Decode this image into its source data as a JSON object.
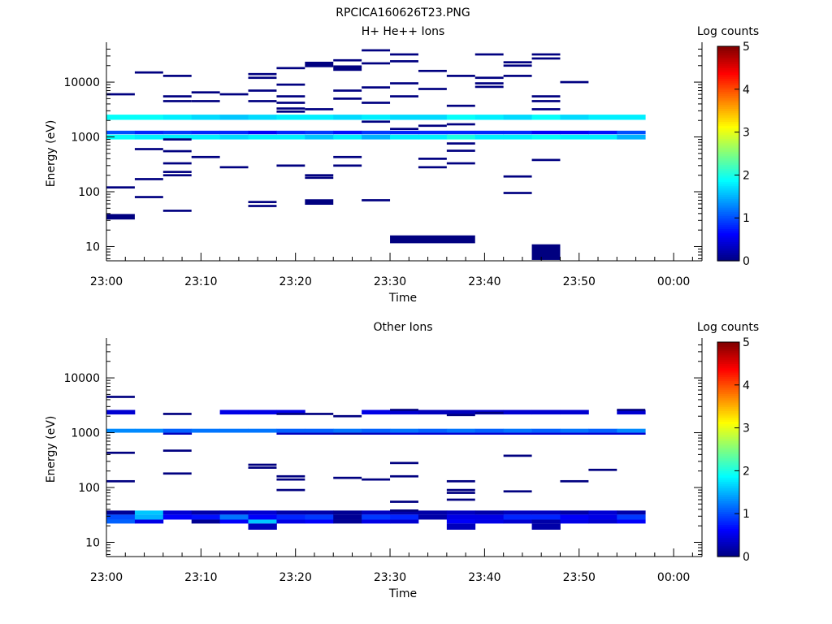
{
  "figure_title": "RPCICA160626T23.PNG",
  "colorbar": {
    "label": "Log counts",
    "ticks": [
      0,
      1,
      2,
      3,
      4,
      5
    ],
    "range": [
      0,
      5
    ],
    "colormap": "jet"
  },
  "chart_data": [
    {
      "type": "heatmap",
      "title": "H+ He++ Ions",
      "xlabel": "Time",
      "ylabel": "Energy (eV)",
      "x_ticks": [
        "23:00",
        "23:10",
        "23:20",
        "23:30",
        "23:40",
        "23:50",
        "00:00"
      ],
      "x_range_minutes": [
        0,
        63
      ],
      "y_scale": "log",
      "y_range": [
        5.5,
        45000
      ],
      "y_ticks": [
        10,
        100,
        1000,
        10000
      ],
      "time_bins": [
        "23:00",
        "23:03",
        "23:06",
        "23:09",
        "23:12",
        "23:15",
        "23:18",
        "23:21",
        "23:24",
        "23:27",
        "23:30",
        "23:33",
        "23:36",
        "23:39",
        "23:42",
        "23:45",
        "23:48",
        "23:51",
        "23:54"
      ],
      "bands": [
        {
          "e1": 2050,
          "e2": 2550,
          "values": [
            1.9,
            1.9,
            1.8,
            1.7,
            1.6,
            1.7,
            1.8,
            1.8,
            1.7,
            1.8,
            1.7,
            1.7,
            1.9,
            1.8,
            1.7,
            1.9,
            1.7,
            1.8,
            1.8
          ]
        },
        {
          "e1": 900,
          "e2": 1100,
          "values": [
            1.9,
            1.8,
            1.8,
            1.8,
            1.7,
            1.8,
            1.8,
            1.6,
            1.8,
            1.5,
            1.8,
            1.8,
            2.0,
            1.8,
            1.8,
            1.9,
            1.8,
            1.8,
            1.5
          ]
        },
        {
          "e1": 1120,
          "e2": 1300,
          "values": [
            1.0,
            0.8,
            0.9,
            0.8,
            0.8,
            0.6,
            0.8,
            0.9,
            0.7,
            0.9,
            0.8,
            0.8,
            0.8,
            0.8,
            0.8,
            0.6,
            0.6,
            0.7,
            1.0
          ]
        }
      ],
      "cells": [
        {
          "t": 0,
          "e": 6000
        },
        {
          "t": 0,
          "e": 120
        },
        {
          "t": 0,
          "e": 35,
          "w": 0.1
        },
        {
          "t": 1,
          "e": 15000
        },
        {
          "t": 1,
          "e": 600
        },
        {
          "t": 1,
          "e": 170
        },
        {
          "t": 1,
          "e": 80
        },
        {
          "t": 2,
          "e": 13000
        },
        {
          "t": 2,
          "e": 5500
        },
        {
          "t": 2,
          "e": 4500
        },
        {
          "t": 2,
          "e": 900
        },
        {
          "t": 2,
          "e": 550
        },
        {
          "t": 2,
          "e": 330
        },
        {
          "t": 2,
          "e": 230
        },
        {
          "t": 2,
          "e": 200
        },
        {
          "t": 2,
          "e": 45
        },
        {
          "t": 3,
          "e": 6500
        },
        {
          "t": 3,
          "e": 4500
        },
        {
          "t": 3,
          "e": 430
        },
        {
          "t": 4,
          "e": 6000
        },
        {
          "t": 4,
          "e": 280
        },
        {
          "t": 5,
          "e": 14000
        },
        {
          "t": 5,
          "e": 12000
        },
        {
          "t": 5,
          "e": 7000
        },
        {
          "t": 5,
          "e": 4500
        },
        {
          "t": 5,
          "e": 65
        },
        {
          "t": 5,
          "e": 55
        },
        {
          "t": 6,
          "e": 18000
        },
        {
          "t": 6,
          "e": 9000
        },
        {
          "t": 6,
          "e": 5500
        },
        {
          "t": 6,
          "e": 4200
        },
        {
          "t": 6,
          "e": 3300
        },
        {
          "t": 6,
          "e": 2900
        },
        {
          "t": 6,
          "e": 300
        },
        {
          "t": 7,
          "e": 21000,
          "w": 0.1
        },
        {
          "t": 7,
          "e": 3200
        },
        {
          "t": 7,
          "e": 200
        },
        {
          "t": 7,
          "e": 180
        },
        {
          "t": 7,
          "e": 65,
          "w": 0.1
        },
        {
          "t": 8,
          "e": 25000
        },
        {
          "t": 8,
          "e": 18000,
          "w": 0.1
        },
        {
          "t": 8,
          "e": 7000
        },
        {
          "t": 8,
          "e": 5000
        },
        {
          "t": 8,
          "e": 430
        },
        {
          "t": 8,
          "e": 300
        },
        {
          "t": 9,
          "e": 38000
        },
        {
          "t": 9,
          "e": 22000
        },
        {
          "t": 9,
          "e": 8000
        },
        {
          "t": 9,
          "e": 4200
        },
        {
          "t": 9,
          "e": 1900
        },
        {
          "t": 9,
          "e": 70
        },
        {
          "t": 10,
          "e": 32000
        },
        {
          "t": 10,
          "e": 24000
        },
        {
          "t": 10,
          "e": 9500
        },
        {
          "t": 10,
          "e": 5500
        },
        {
          "t": 10,
          "e": 1400
        },
        {
          "t": 11,
          "e": 16000
        },
        {
          "t": 11,
          "e": 7500
        },
        {
          "t": 11,
          "e": 1600
        },
        {
          "t": 11,
          "e": 400
        },
        {
          "t": 11,
          "e": 280
        },
        {
          "t": 12,
          "e": 13000
        },
        {
          "t": 12,
          "e": 3700
        },
        {
          "t": 12,
          "e": 1700
        },
        {
          "t": 12,
          "e": 760
        },
        {
          "t": 12,
          "e": 560
        },
        {
          "t": 12,
          "e": 330
        },
        {
          "t": 13,
          "e": 32000
        },
        {
          "t": 13,
          "e": 12000
        },
        {
          "t": 13,
          "e": 9500
        },
        {
          "t": 13,
          "e": 8200
        },
        {
          "t": 14,
          "e": 23000
        },
        {
          "t": 14,
          "e": 20000
        },
        {
          "t": 14,
          "e": 13000
        },
        {
          "t": 14,
          "e": 190
        },
        {
          "t": 14,
          "e": 95
        },
        {
          "t": 15,
          "e": 32000
        },
        {
          "t": 15,
          "e": 27000
        },
        {
          "t": 15,
          "e": 5500
        },
        {
          "t": 15,
          "e": 4500
        },
        {
          "t": 15,
          "e": 3200
        },
        {
          "t": 15,
          "e": 380
        },
        {
          "t": 16,
          "e": 10000
        }
      ],
      "blocks": [
        {
          "t1": 10,
          "t2": 12,
          "e1": 11.5,
          "e2": 16
        },
        {
          "t1": 15,
          "t2": 15,
          "e1": 5.7,
          "e2": 11
        }
      ]
    },
    {
      "type": "heatmap",
      "title": "Other Ions",
      "xlabel": "Time",
      "ylabel": "Energy (eV)",
      "x_ticks": [
        "23:00",
        "23:10",
        "23:20",
        "23:30",
        "23:40",
        "23:50",
        "00:00"
      ],
      "x_range_minutes": [
        0,
        63
      ],
      "y_scale": "log",
      "y_range": [
        5.5,
        45000
      ],
      "y_ticks": [
        10,
        100,
        1000,
        10000
      ],
      "time_bins": [
        "23:00",
        "23:03",
        "23:06",
        "23:09",
        "23:12",
        "23:15",
        "23:18",
        "23:21",
        "23:24",
        "23:27",
        "23:30",
        "23:33",
        "23:36",
        "23:39",
        "23:42",
        "23:45",
        "23:48",
        "23:51",
        "23:54"
      ],
      "bands": [
        {
          "e1": 1000,
          "e2": 1180,
          "values": [
            1.3,
            1.3,
            1.1,
            1.2,
            1.2,
            1.2,
            1.1,
            1.1,
            1.2,
            1.1,
            1.2,
            1.1,
            1.2,
            1.1,
            1.2,
            1.1,
            1.2,
            1.1,
            1.3
          ]
        },
        {
          "e1": 920,
          "e2": 1000,
          "values": [
            null,
            null,
            0.3,
            null,
            null,
            null,
            0.3,
            0.3,
            0.2,
            0.3,
            0.4,
            0.4,
            0.4,
            0.4,
            0.4,
            0.4,
            0.4,
            0.4,
            0.4
          ]
        },
        {
          "e1": 2150,
          "e2": 2600,
          "values": [
            0.4,
            null,
            null,
            null,
            0.5,
            0.5,
            0.5,
            null,
            null,
            0.5,
            0.4,
            0.3,
            0.3,
            0.4,
            0.4,
            0.4,
            0.4,
            null,
            0.4
          ]
        },
        {
          "e1": 32,
          "e2": 38,
          "values": [
            0.1,
            1.6,
            0.4,
            0.2,
            0.3,
            0.4,
            0.2,
            0.2,
            0.1,
            0.3,
            0.2,
            0.2,
            0.3,
            0.2,
            0.3,
            0.3,
            0.2,
            0.4,
            0.2
          ]
        },
        {
          "e1": 26,
          "e2": 32,
          "values": [
            1.0,
            1.5,
            0.6,
            0.7,
            1.2,
            0.6,
            0.8,
            0.9,
            0.1,
            0.9,
            0.8,
            0.2,
            0.5,
            0.5,
            0.8,
            0.8,
            0.6,
            0.5,
            0.9
          ]
        },
        {
          "e1": 22,
          "e2": 26,
          "values": [
            1.1,
            0.5,
            null,
            0.1,
            0.6,
            1.6,
            0.5,
            0.6,
            0.1,
            0.5,
            0.4,
            null,
            0.6,
            0.5,
            0.4,
            0.2,
            0.5,
            0.4,
            0.6
          ]
        },
        {
          "e1": 17,
          "e2": 22,
          "values": [
            null,
            null,
            null,
            null,
            null,
            0.3,
            null,
            null,
            null,
            null,
            null,
            null,
            0.3,
            null,
            null,
            0.2,
            null,
            null,
            null
          ]
        }
      ],
      "cells": [
        {
          "t": 0,
          "e": 4500
        },
        {
          "t": 0,
          "e": 430
        },
        {
          "t": 0,
          "e": 130
        },
        {
          "t": 2,
          "e": 2200
        },
        {
          "t": 2,
          "e": 470
        },
        {
          "t": 2,
          "e": 180
        },
        {
          "t": 5,
          "e": 260
        },
        {
          "t": 5,
          "e": 230
        },
        {
          "t": 6,
          "e": 2200
        },
        {
          "t": 6,
          "e": 160
        },
        {
          "t": 6,
          "e": 140
        },
        {
          "t": 6,
          "e": 90
        },
        {
          "t": 7,
          "e": 2200
        },
        {
          "t": 8,
          "e": 2000
        },
        {
          "t": 8,
          "e": 150
        },
        {
          "t": 9,
          "e": 140
        },
        {
          "t": 10,
          "e": 2600
        },
        {
          "t": 10,
          "e": 280
        },
        {
          "t": 10,
          "e": 160
        },
        {
          "t": 10,
          "e": 55
        },
        {
          "t": 10,
          "e": 38
        },
        {
          "t": 12,
          "e": 2100
        },
        {
          "t": 12,
          "e": 130
        },
        {
          "t": 12,
          "e": 90
        },
        {
          "t": 12,
          "e": 80
        },
        {
          "t": 12,
          "e": 60
        },
        {
          "t": 13,
          "e": 2300
        },
        {
          "t": 14,
          "e": 380
        },
        {
          "t": 14,
          "e": 85
        },
        {
          "t": 16,
          "e": 130
        },
        {
          "t": 17,
          "e": 210
        },
        {
          "t": 18,
          "e": 2600
        }
      ],
      "blocks": []
    }
  ]
}
